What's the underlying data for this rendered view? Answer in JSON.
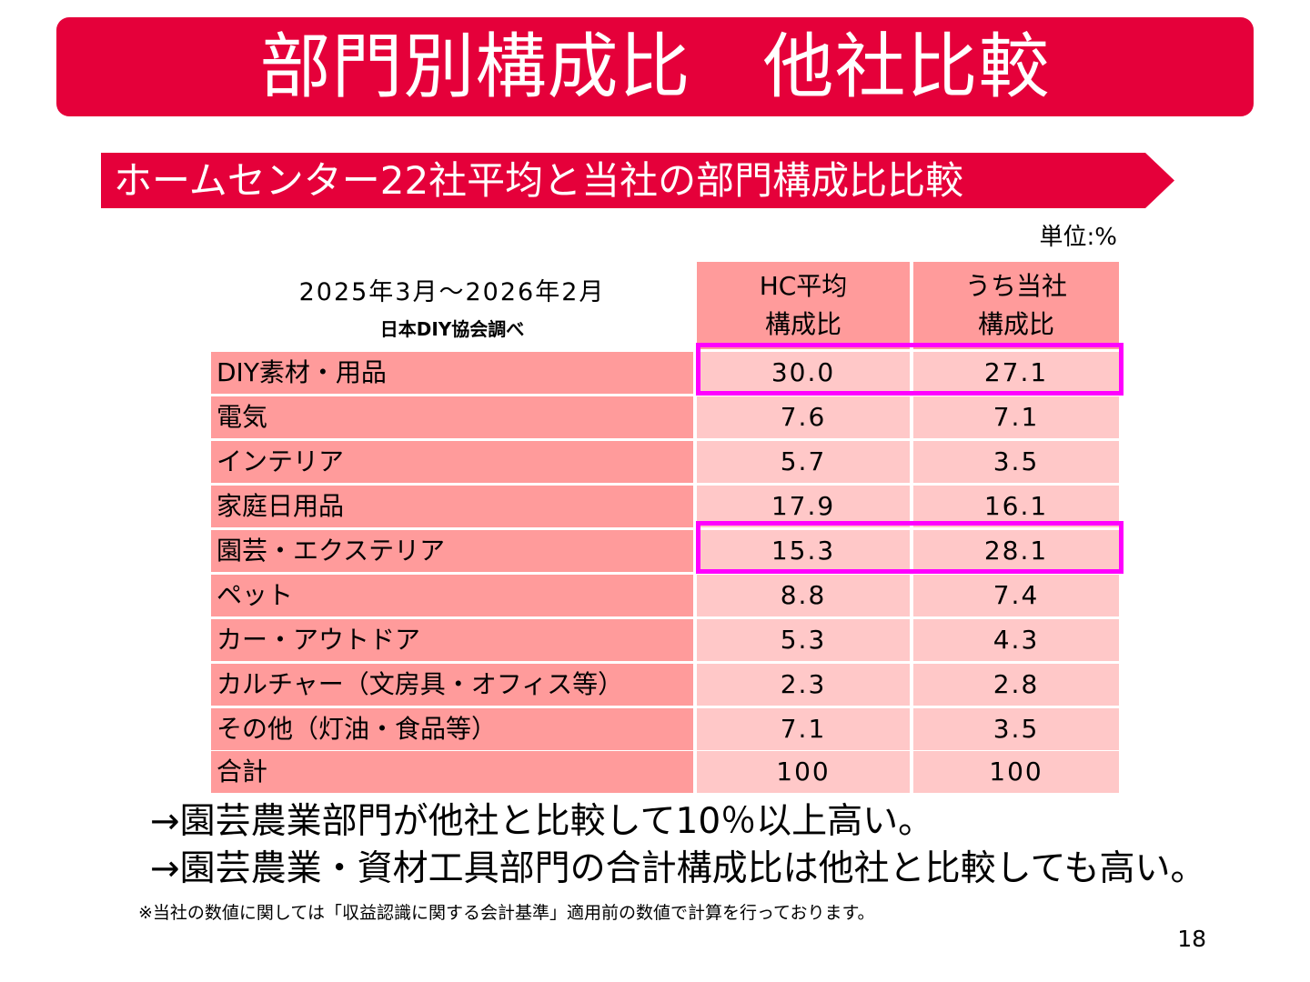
{
  "slide": {
    "title": "部門別構成比　他社比較",
    "subtitle": "ホームセンター22社平均と当社の部門構成比比較",
    "unit": "単位:%",
    "period": "2025年3月～2026年2月",
    "source": "日本DIY協会調べ",
    "page_number": "18"
  },
  "table": {
    "headers": [
      {
        "line1": "HC平均",
        "line2": "構成比"
      },
      {
        "line1": "うち当社",
        "line2": "構成比"
      }
    ],
    "rows": [
      {
        "label": "DIY素材・用品",
        "hc": "30.0",
        "own": "27.1"
      },
      {
        "label": "電気",
        "hc": "7.6",
        "own": "7.1"
      },
      {
        "label": "インテリア",
        "hc": "5.7",
        "own": "3.5"
      },
      {
        "label": "家庭日用品",
        "hc": "17.9",
        "own": "16.1"
      },
      {
        "label": "園芸・エクステリア",
        "hc": "15.3",
        "own": "28.1"
      },
      {
        "label": "ペット",
        "hc": "8.8",
        "own": "7.4"
      },
      {
        "label": "カー・アウトドア",
        "hc": "5.3",
        "own": "4.3"
      },
      {
        "label": "カルチャー（文房具・オフィス等）",
        "hc": "2.3",
        "own": "2.8"
      },
      {
        "label": "その他（灯油・食品等）",
        "hc": "7.1",
        "own": "3.5"
      },
      {
        "label": "合計",
        "hc": "100",
        "own": "100"
      }
    ],
    "highlighted_rows": [
      "DIY素材・用品",
      "園芸・エクステリア"
    ]
  },
  "conclusions": [
    "→園芸農業部門が他社と比較して10％以上高い。",
    "→園芸農業・資材工具部門の合計構成比は他社と比較しても高い。"
  ],
  "footnote": "※当社の数値に関しては「収益認識に関する会計基準」適用前の数値で計算を行っております。",
  "colors": {
    "brand_red": "#e5003a",
    "header_pink": "#ff9b9b",
    "cell_pink": "#ffc8c8",
    "highlight_magenta": "#ff00ff"
  }
}
